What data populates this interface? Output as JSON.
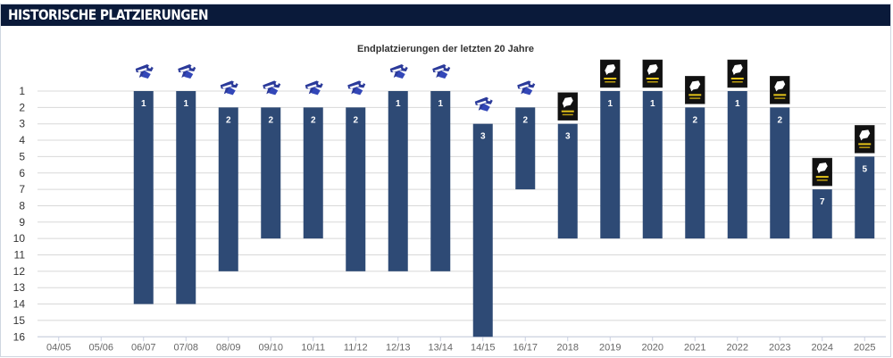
{
  "header": {
    "title": "HISTORISCHE PLATZIERUNGEN"
  },
  "chart_data": {
    "type": "bar",
    "title": "Endplatzierungen der letzten 20 Jahre",
    "xlabel": "",
    "ylabel": "",
    "y_reversed": true,
    "ylim": [
      1,
      16
    ],
    "y_ticks": [
      "1",
      "2",
      "3",
      "4",
      "5",
      "6",
      "7",
      "8",
      "9",
      "10",
      "11",
      "12",
      "13",
      "14",
      "15",
      "16"
    ],
    "categories": [
      "04/05",
      "05/06",
      "06/07",
      "07/08",
      "08/09",
      "09/10",
      "10/11",
      "11/12",
      "12/13",
      "13/14",
      "14/15",
      "16/17",
      "2018",
      "2019",
      "2020",
      "2021",
      "2022",
      "2023",
      "2024",
      "2025"
    ],
    "series": [
      {
        "placement": [
          null,
          null,
          1,
          1,
          2,
          2,
          2,
          2,
          1,
          1,
          3,
          2,
          3,
          1,
          1,
          2,
          1,
          2,
          7,
          5
        ],
        "league_size": [
          null,
          null,
          14,
          14,
          12,
          10,
          10,
          12,
          12,
          12,
          16,
          7,
          10,
          10,
          10,
          10,
          10,
          10,
          10,
          10
        ]
      }
    ],
    "league_icon": [
      null,
      null,
      "league-logo-blue",
      "league-logo-blue",
      "league-logo-blue",
      "league-logo-blue",
      "league-logo-blue",
      "league-logo-blue",
      "league-logo-blue",
      "league-logo-blue",
      "league-logo-blue",
      "league-logo-blue",
      "league-logo-black",
      "league-logo-black",
      "league-logo-black",
      "league-logo-black",
      "league-logo-black",
      "league-logo-black",
      "league-logo-black",
      "league-logo-black"
    ],
    "grid": true,
    "bar_color": "#2e4a75"
  }
}
